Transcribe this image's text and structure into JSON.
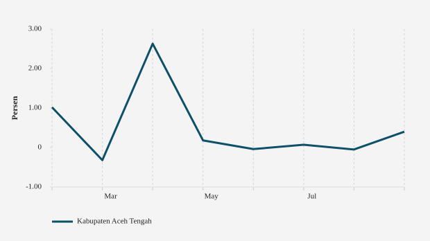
{
  "chart_data": {
    "type": "line",
    "y_label": "Persen",
    "categories": [
      null,
      "Mar",
      null,
      "May",
      null,
      "Jul",
      null,
      null
    ],
    "series": [
      {
        "name": "Kabupaten Aceh Tengah",
        "color": "#0d5068",
        "values": [
          1.02,
          -0.32,
          2.63,
          0.18,
          -0.04,
          0.07,
          -0.05,
          0.4
        ]
      }
    ],
    "ylim": [
      -1,
      3
    ],
    "yticks": [
      {
        "value": -1,
        "label": "-1.00"
      },
      0,
      {
        "value": 1,
        "label": "1.00"
      },
      {
        "value": 2,
        "label": "2.00"
      },
      {
        "value": 3,
        "label": "3.00"
      }
    ],
    "grid": true
  }
}
